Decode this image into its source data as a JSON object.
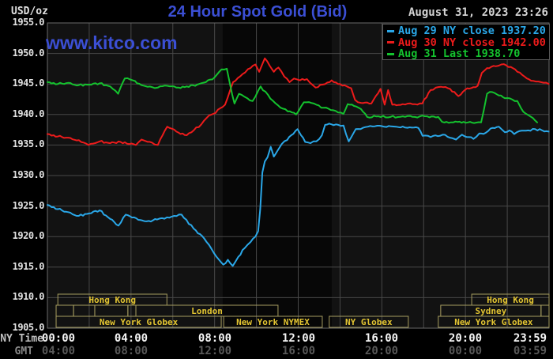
{
  "header": {
    "units_label": "USD/oz",
    "title": "24 Hour Spot Gold (Bid)",
    "datetime": "August 31, 2023 23:26",
    "watermark": "www.kitco.com"
  },
  "legend": {
    "items": [
      {
        "label": "Aug 29 NY close 1937.20",
        "color": "#2aa7e8"
      },
      {
        "label": "Aug 30 NY close 1942.00",
        "color": "#ec1b1b"
      },
      {
        "label": "Aug 31 Last 1938.70",
        "color": "#14c22e"
      }
    ]
  },
  "y_axis": {
    "ticks": [
      "1955.0",
      "1950.0",
      "1945.0",
      "1940.0",
      "1935.0",
      "1930.0",
      "1925.0",
      "1920.0",
      "1915.0",
      "1910.0",
      "1905.0"
    ],
    "max": 1955,
    "min": 1905,
    "step": 5
  },
  "x_axis": {
    "ny_label": "NY Time",
    "gmt_label": "GMT",
    "ticks": [
      {
        "minutes": 0,
        "ny": "00:00",
        "gmt": "04:00"
      },
      {
        "minutes": 240,
        "ny": "04:00",
        "gmt": "08:00"
      },
      {
        "minutes": 480,
        "ny": "08:00",
        "gmt": "12:00"
      },
      {
        "minutes": 720,
        "ny": "12:00",
        "gmt": "16:00"
      },
      {
        "minutes": 960,
        "ny": "16:00",
        "gmt": "20:00"
      },
      {
        "minutes": 1200,
        "ny": "20:00",
        "gmt": "00:00"
      },
      {
        "minutes": 1439,
        "ny": "23:59",
        "gmt": "03:59"
      }
    ]
  },
  "sessions": {
    "rows": [
      [
        {
          "label": "Hong Kong",
          "start_min": 30,
          "end_min": 343
        },
        {
          "label": "Hong Kong",
          "start_min": 1218,
          "end_min": 1440
        }
      ],
      [
        {
          "label": "",
          "start_min": 25,
          "end_min": 75
        },
        {
          "label": "",
          "start_min": 75,
          "end_min": 136
        },
        {
          "label": "",
          "start_min": 136,
          "end_min": 231
        },
        {
          "label": "",
          "start_min": 231,
          "end_min": 254
        },
        {
          "label": "London",
          "start_min": 254,
          "end_min": 662
        },
        {
          "label": "Sydney",
          "start_min": 1129,
          "end_min": 1417
        },
        {
          "label": "",
          "start_min": 1417,
          "end_min": 1440
        }
      ],
      [
        {
          "label": "New York Globex",
          "start_min": 25,
          "end_min": 499
        },
        {
          "label": "New York NYMEX",
          "start_min": 506,
          "end_min": 789
        },
        {
          "label": "NY Globex",
          "start_min": 809,
          "end_min": 1036
        },
        {
          "label": "New York Globex",
          "start_min": 1122,
          "end_min": 1440
        }
      ]
    ],
    "box_color": "#a79d60",
    "text_color": "#e3c532"
  },
  "chart_data": {
    "type": "line",
    "title": "24 Hour Spot Gold (Bid)",
    "ylabel": "USD/oz",
    "xlabel": "NY Time (00:00 - 23:59)",
    "ylim": [
      1905,
      1955
    ],
    "xlim_minutes": [
      0,
      1440
    ],
    "grid": true,
    "legend_position": "top-right",
    "shaded_region_minutes": [
      503,
      816
    ],
    "series": [
      {
        "id": "aug29",
        "name": "Aug 29",
        "close": 1937.2,
        "color": "#2aa7e8",
        "points": [
          [
            0,
            1925.2
          ],
          [
            30,
            1924.5
          ],
          [
            60,
            1924.0
          ],
          [
            90,
            1923.4
          ],
          [
            120,
            1923.8
          ],
          [
            150,
            1924.3
          ],
          [
            180,
            1922.9
          ],
          [
            204,
            1921.8
          ],
          [
            225,
            1923.6
          ],
          [
            255,
            1923.0
          ],
          [
            285,
            1922.5
          ],
          [
            315,
            1922.8
          ],
          [
            350,
            1923.1
          ],
          [
            385,
            1923.6
          ],
          [
            420,
            1921.3
          ],
          [
            450,
            1919.7
          ],
          [
            478,
            1917.3
          ],
          [
            505,
            1915.4
          ],
          [
            518,
            1916.2
          ],
          [
            532,
            1915.2
          ],
          [
            548,
            1916.7
          ],
          [
            566,
            1918.1
          ],
          [
            583,
            1919.1
          ],
          [
            597,
            1920.0
          ],
          [
            605,
            1920.9
          ],
          [
            611,
            1924.5
          ],
          [
            617,
            1930.5
          ],
          [
            624,
            1932.3
          ],
          [
            632,
            1933.0
          ],
          [
            641,
            1934.7
          ],
          [
            650,
            1933.1
          ],
          [
            662,
            1934.2
          ],
          [
            673,
            1935.2
          ],
          [
            688,
            1935.8
          ],
          [
            700,
            1936.6
          ],
          [
            712,
            1937.3
          ],
          [
            718,
            1937.6
          ],
          [
            728,
            1936.6
          ],
          [
            740,
            1935.5
          ],
          [
            755,
            1935.3
          ],
          [
            772,
            1935.6
          ],
          [
            788,
            1936.6
          ],
          [
            797,
            1938.3
          ],
          [
            815,
            1938.4
          ],
          [
            835,
            1938.3
          ],
          [
            850,
            1938.2
          ],
          [
            865,
            1935.6
          ],
          [
            885,
            1937.6
          ],
          [
            920,
            1938.0
          ],
          [
            960,
            1938.1
          ],
          [
            1000,
            1938.0
          ],
          [
            1040,
            1937.9
          ],
          [
            1065,
            1937.8
          ],
          [
            1077,
            1936.5
          ],
          [
            1100,
            1936.3
          ],
          [
            1135,
            1936.7
          ],
          [
            1155,
            1936.2
          ],
          [
            1173,
            1935.9
          ],
          [
            1190,
            1936.7
          ],
          [
            1210,
            1936.3
          ],
          [
            1223,
            1936.0
          ],
          [
            1240,
            1936.9
          ],
          [
            1258,
            1937.0
          ],
          [
            1272,
            1937.7
          ],
          [
            1296,
            1938.0
          ],
          [
            1313,
            1937.1
          ],
          [
            1326,
            1937.4
          ],
          [
            1340,
            1936.8
          ],
          [
            1356,
            1937.3
          ],
          [
            1380,
            1937.4
          ],
          [
            1400,
            1937.6
          ],
          [
            1420,
            1937.4
          ],
          [
            1439,
            1937.2
          ]
        ]
      },
      {
        "id": "aug30",
        "name": "Aug 30",
        "close": 1942.0,
        "color": "#ec1b1b",
        "points": [
          [
            0,
            1936.8
          ],
          [
            30,
            1936.4
          ],
          [
            60,
            1936.2
          ],
          [
            90,
            1935.8
          ],
          [
            118,
            1935.0
          ],
          [
            150,
            1935.6
          ],
          [
            180,
            1935.3
          ],
          [
            210,
            1935.5
          ],
          [
            254,
            1935.0
          ],
          [
            270,
            1935.9
          ],
          [
            300,
            1935.4
          ],
          [
            317,
            1935.0
          ],
          [
            344,
            1938.0
          ],
          [
            370,
            1937.2
          ],
          [
            400,
            1936.6
          ],
          [
            420,
            1937.4
          ],
          [
            442,
            1938.4
          ],
          [
            458,
            1939.5
          ],
          [
            476,
            1940.1
          ],
          [
            510,
            1941.6
          ],
          [
            533,
            1945.3
          ],
          [
            560,
            1946.6
          ],
          [
            583,
            1947.6
          ],
          [
            597,
            1948.2
          ],
          [
            608,
            1947.0
          ],
          [
            624,
            1949.2
          ],
          [
            638,
            1948.0
          ],
          [
            650,
            1947.0
          ],
          [
            663,
            1947.7
          ],
          [
            680,
            1946.2
          ],
          [
            695,
            1945.3
          ],
          [
            708,
            1945.9
          ],
          [
            725,
            1945.6
          ],
          [
            745,
            1945.8
          ],
          [
            762,
            1944.8
          ],
          [
            770,
            1944.4
          ],
          [
            790,
            1944.9
          ],
          [
            810,
            1945.3
          ],
          [
            816,
            1945.6
          ],
          [
            840,
            1945.0
          ],
          [
            860,
            1944.6
          ],
          [
            872,
            1944.3
          ],
          [
            883,
            1942.4
          ],
          [
            900,
            1941.9
          ],
          [
            930,
            1941.8
          ],
          [
            956,
            1944.2
          ],
          [
            968,
            1941.6
          ],
          [
            978,
            1944.0
          ],
          [
            990,
            1941.6
          ],
          [
            1020,
            1941.7
          ],
          [
            1055,
            1941.7
          ],
          [
            1076,
            1941.8
          ],
          [
            1100,
            1944.0
          ],
          [
            1122,
            1944.5
          ],
          [
            1150,
            1944.3
          ],
          [
            1168,
            1943.7
          ],
          [
            1180,
            1943.0
          ],
          [
            1205,
            1944.3
          ],
          [
            1235,
            1944.7
          ],
          [
            1247,
            1946.8
          ],
          [
            1262,
            1947.6
          ],
          [
            1287,
            1947.9
          ],
          [
            1303,
            1948.2
          ],
          [
            1330,
            1947.8
          ],
          [
            1349,
            1947.0
          ],
          [
            1370,
            1946.2
          ],
          [
            1395,
            1945.5
          ],
          [
            1417,
            1945.3
          ],
          [
            1439,
            1945.0
          ]
        ]
      },
      {
        "id": "aug31",
        "name": "Aug 31",
        "last": 1938.7,
        "color": "#14c22e",
        "points": [
          [
            0,
            1945.3
          ],
          [
            30,
            1945.0
          ],
          [
            60,
            1945.2
          ],
          [
            90,
            1944.8
          ],
          [
            120,
            1944.9
          ],
          [
            150,
            1945.1
          ],
          [
            180,
            1944.6
          ],
          [
            203,
            1943.4
          ],
          [
            222,
            1945.9
          ],
          [
            245,
            1945.6
          ],
          [
            270,
            1944.8
          ],
          [
            300,
            1944.5
          ],
          [
            317,
            1944.4
          ],
          [
            344,
            1944.7
          ],
          [
            370,
            1944.4
          ],
          [
            400,
            1944.6
          ],
          [
            430,
            1944.9
          ],
          [
            455,
            1945.3
          ],
          [
            480,
            1946.1
          ],
          [
            500,
            1947.4
          ],
          [
            515,
            1947.5
          ],
          [
            524,
            1945.0
          ],
          [
            537,
            1941.8
          ],
          [
            550,
            1943.4
          ],
          [
            566,
            1942.9
          ],
          [
            589,
            1942.2
          ],
          [
            612,
            1944.6
          ],
          [
            640,
            1942.6
          ],
          [
            662,
            1941.5
          ],
          [
            690,
            1940.5
          ],
          [
            714,
            1940.0
          ],
          [
            736,
            1942.0
          ],
          [
            765,
            1941.8
          ],
          [
            793,
            1941.1
          ],
          [
            827,
            1940.6
          ],
          [
            850,
            1940.1
          ],
          [
            862,
            1941.7
          ],
          [
            880,
            1941.4
          ],
          [
            900,
            1940.9
          ],
          [
            918,
            1939.6
          ],
          [
            950,
            1939.7
          ],
          [
            985,
            1939.6
          ],
          [
            1020,
            1939.7
          ],
          [
            1055,
            1939.6
          ],
          [
            1090,
            1939.7
          ],
          [
            1122,
            1939.6
          ],
          [
            1133,
            1938.8
          ],
          [
            1165,
            1938.7
          ],
          [
            1195,
            1938.8
          ],
          [
            1225,
            1938.6
          ],
          [
            1245,
            1938.7
          ],
          [
            1252,
            1940.5
          ],
          [
            1262,
            1943.4
          ],
          [
            1270,
            1943.7
          ],
          [
            1290,
            1943.3
          ],
          [
            1320,
            1942.7
          ],
          [
            1349,
            1942.2
          ],
          [
            1360,
            1941.0
          ],
          [
            1372,
            1940.2
          ],
          [
            1383,
            1939.8
          ],
          [
            1394,
            1939.4
          ],
          [
            1406,
            1938.7
          ]
        ]
      }
    ],
    "colors": {
      "plot_bg": "#121212",
      "shaded_band": "#070707",
      "gridline": "#484848",
      "border": "#6a6a6a"
    }
  }
}
